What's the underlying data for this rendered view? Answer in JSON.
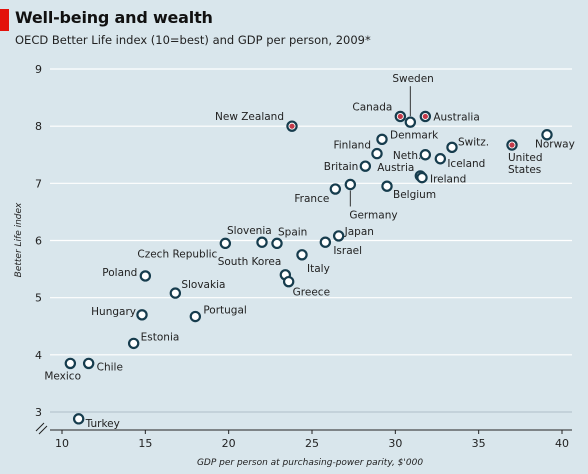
{
  "title": "Well-being and wealth",
  "subtitle": "OECD Better Life index (10=best) and GDP per person, 2009*",
  "colors": {
    "background": "#d9e6ec",
    "accent": "#e3120b",
    "marker_stroke": "#163c4d",
    "marker_fill": "#ffffff",
    "highlight_fill": "#c33a4a",
    "grid": "#ffffff"
  },
  "chart_data": {
    "type": "scatter",
    "xlabel": "GDP per person at purchasing-power parity, $'000",
    "ylabel": "Better Life index",
    "xlim": [
      9,
      41
    ],
    "ylim": [
      2.7,
      9.1
    ],
    "xticks": [
      10,
      15,
      20,
      25,
      30,
      35,
      40
    ],
    "yticks": [
      3,
      4,
      5,
      6,
      7,
      8,
      9
    ],
    "grid": "horizontal",
    "y_axis_break": true,
    "points": [
      {
        "country": "New Zealand",
        "x": 23.8,
        "y": 8.0,
        "highlight": true
      },
      {
        "country": "Canada",
        "x": 30.3,
        "y": 8.17,
        "highlight": true
      },
      {
        "country": "Sweden",
        "x": 30.9,
        "y": 8.07,
        "highlight": false
      },
      {
        "country": "Australia",
        "x": 31.8,
        "y": 8.17,
        "highlight": true
      },
      {
        "country": "Norway",
        "x": 39.1,
        "y": 7.85,
        "highlight": false
      },
      {
        "country": "United States",
        "x": 37.0,
        "y": 7.67,
        "highlight": true
      },
      {
        "country": "Denmark",
        "x": 29.2,
        "y": 7.77,
        "highlight": false
      },
      {
        "country": "Switz.",
        "x": 33.4,
        "y": 7.63,
        "highlight": false
      },
      {
        "country": "Finland",
        "x": 28.9,
        "y": 7.52,
        "highlight": false
      },
      {
        "country": "Neth.",
        "x": 31.8,
        "y": 7.5,
        "highlight": false
      },
      {
        "country": "Iceland",
        "x": 32.7,
        "y": 7.43,
        "highlight": false
      },
      {
        "country": "Britain",
        "x": 28.2,
        "y": 7.3,
        "highlight": false
      },
      {
        "country": "Austria",
        "x": 31.5,
        "y": 7.13,
        "highlight": false
      },
      {
        "country": "Ireland",
        "x": 31.6,
        "y": 7.1,
        "highlight": false
      },
      {
        "country": "Germany",
        "x": 27.3,
        "y": 6.98,
        "highlight": false
      },
      {
        "country": "Belgium",
        "x": 29.5,
        "y": 6.95,
        "highlight": false
      },
      {
        "country": "France",
        "x": 26.4,
        "y": 6.9,
        "highlight": false
      },
      {
        "country": "Japan",
        "x": 26.6,
        "y": 6.08,
        "highlight": false
      },
      {
        "country": "Israel",
        "x": 25.8,
        "y": 5.97,
        "highlight": false
      },
      {
        "country": "Spain",
        "x": 22.9,
        "y": 5.95,
        "highlight": false
      },
      {
        "country": "Slovenia",
        "x": 22.0,
        "y": 5.97,
        "highlight": false
      },
      {
        "country": "Czech Republic",
        "x": 19.8,
        "y": 5.95,
        "highlight": false
      },
      {
        "country": "Italy",
        "x": 24.4,
        "y": 5.75,
        "highlight": false
      },
      {
        "country": "South Korea",
        "x": 23.4,
        "y": 5.4,
        "highlight": false
      },
      {
        "country": "Greece",
        "x": 23.6,
        "y": 5.28,
        "highlight": false
      },
      {
        "country": "Poland",
        "x": 15.0,
        "y": 5.38,
        "highlight": false
      },
      {
        "country": "Slovakia",
        "x": 16.8,
        "y": 5.08,
        "highlight": false
      },
      {
        "country": "Hungary",
        "x": 14.8,
        "y": 4.7,
        "highlight": false
      },
      {
        "country": "Portugal",
        "x": 18.0,
        "y": 4.67,
        "highlight": false
      },
      {
        "country": "Estonia",
        "x": 14.3,
        "y": 4.2,
        "highlight": false
      },
      {
        "country": "Mexico",
        "x": 10.5,
        "y": 3.85,
        "highlight": false
      },
      {
        "country": "Chile",
        "x": 11.6,
        "y": 3.85,
        "highlight": false
      },
      {
        "country": "Turkey",
        "x": 11.0,
        "y": 2.88,
        "highlight": false
      }
    ]
  }
}
